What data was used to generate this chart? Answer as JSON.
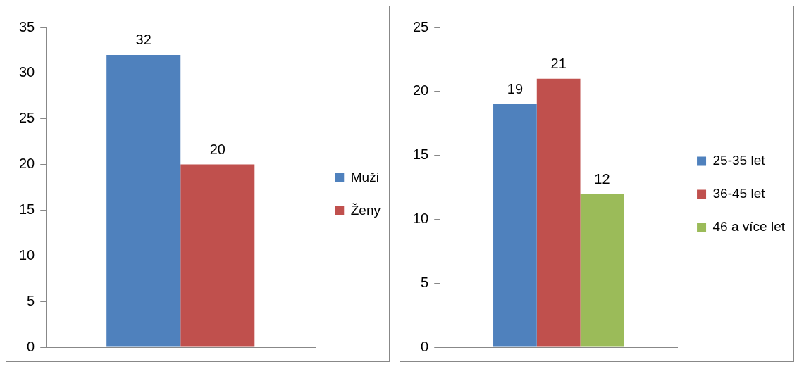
{
  "chart_data": [
    {
      "type": "bar",
      "categories": [
        null
      ],
      "series": [
        {
          "name": "Muži",
          "color": "#4f81bd",
          "values": [
            32
          ]
        },
        {
          "name": "Ženy",
          "color": "#c0504d",
          "values": [
            20
          ]
        }
      ],
      "ylim": [
        0,
        35
      ],
      "yticks": [
        0,
        5,
        10,
        15,
        20,
        25,
        30,
        35
      ],
      "grid": false,
      "legend": "right",
      "data_labels": true
    },
    {
      "type": "bar",
      "categories": [
        null
      ],
      "series": [
        {
          "name": "25-35 let",
          "color": "#4f81bd",
          "values": [
            19
          ]
        },
        {
          "name": "36-45 let",
          "color": "#c0504d",
          "values": [
            21
          ]
        },
        {
          "name": "46 a více let",
          "color": "#9bbb59",
          "values": [
            12
          ]
        }
      ],
      "ylim": [
        0,
        25
      ],
      "yticks": [
        0,
        5,
        10,
        15,
        20,
        25
      ],
      "grid": false,
      "legend": "right",
      "data_labels": true
    }
  ]
}
